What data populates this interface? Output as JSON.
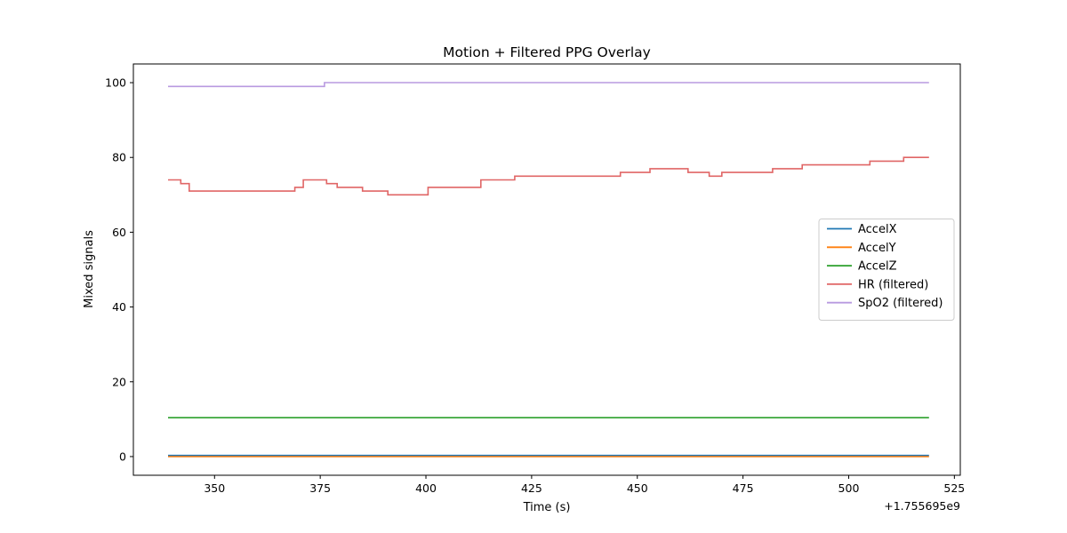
{
  "chart_data": {
    "type": "line",
    "title": "Motion + Filtered PPG Overlay",
    "xlabel": "Time (s)",
    "ylabel": "Mixed signals",
    "x_offset_label": "+1.755695e9",
    "xlim": [
      330.8,
      526.4
    ],
    "ylim": [
      -5,
      105
    ],
    "xticks": [
      350,
      375,
      400,
      425,
      450,
      475,
      500,
      525
    ],
    "yticks": [
      0,
      20,
      40,
      60,
      80,
      100
    ],
    "legend_position": "center right",
    "grid": false,
    "series": [
      {
        "name": "AccelX",
        "color": "#1f77b4",
        "step": false,
        "x": [
          339,
          519
        ],
        "y": [
          0.3,
          0.3
        ]
      },
      {
        "name": "AccelY",
        "color": "#ff7f0e",
        "step": false,
        "x": [
          339,
          519
        ],
        "y": [
          0.0,
          0.0
        ]
      },
      {
        "name": "AccelZ",
        "color": "#2ca02c",
        "step": false,
        "x": [
          339,
          519
        ],
        "y": [
          10.4,
          10.4
        ]
      },
      {
        "name": "HR (filtered)",
        "color": "#e06666",
        "step": true,
        "x": [
          339,
          342,
          344,
          369,
          371,
          376.5,
          377,
          379,
          385,
          391,
          400.5,
          413,
          421,
          446,
          453,
          462,
          467,
          470,
          482,
          489,
          505,
          513,
          519
        ],
        "y": [
          74,
          73,
          71,
          72,
          74,
          73,
          73,
          72,
          71,
          70,
          72,
          74,
          75,
          76,
          77,
          76,
          75,
          76,
          77,
          78,
          79,
          80,
          80
        ]
      },
      {
        "name": "SpO2 (filtered)",
        "color": "#b89ae0",
        "step": true,
        "x": [
          339,
          376,
          519
        ],
        "y": [
          99,
          100,
          100
        ]
      }
    ]
  }
}
